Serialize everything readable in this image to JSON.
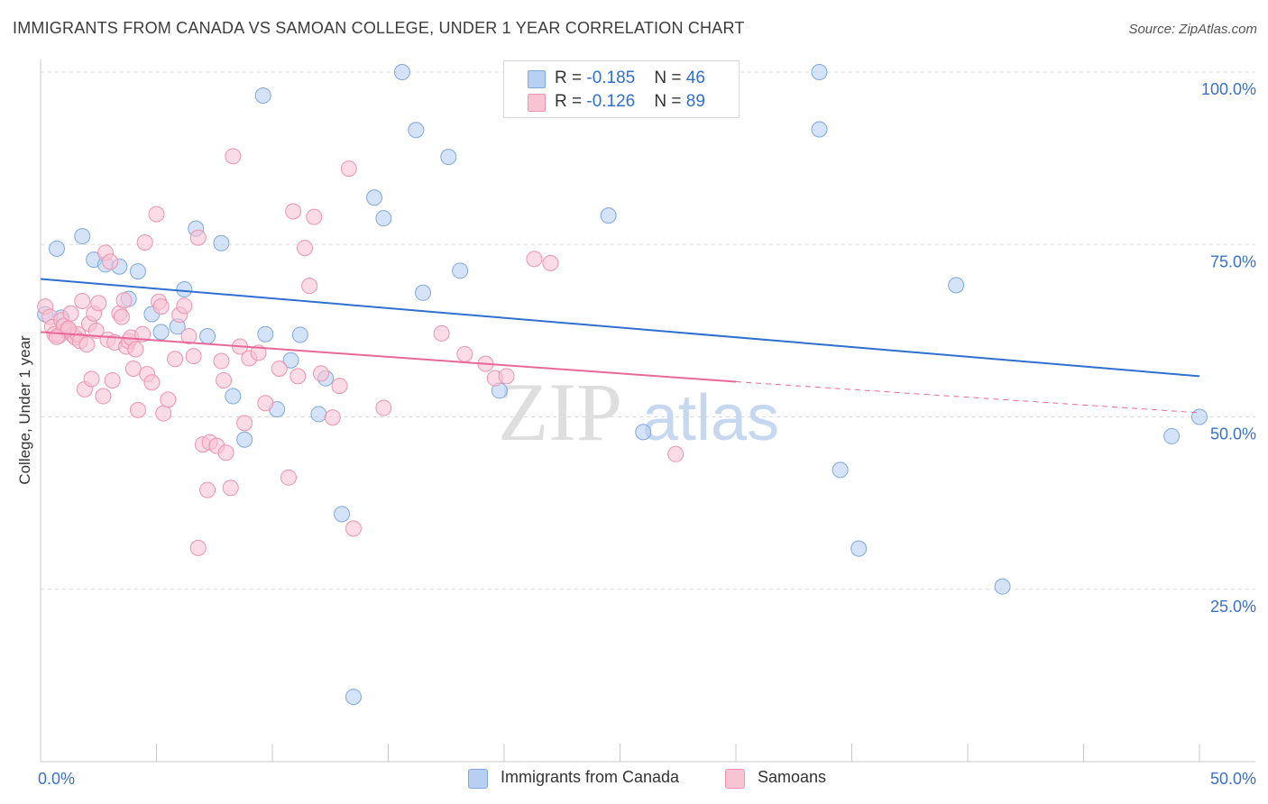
{
  "header": {
    "title": "IMMIGRANTS FROM CANADA VS SAMOAN COLLEGE, UNDER 1 YEAR CORRELATION CHART",
    "source": "Source: ZipAtlas.com"
  },
  "watermark": {
    "zip": "ZIP",
    "atlas": "atlas"
  },
  "legend_top": {
    "rows": [
      {
        "r_label": "R = ",
        "r_value": "-0.185",
        "n_label": "N = ",
        "n_value": "46"
      },
      {
        "r_label": "R = ",
        "r_value": "-0.126",
        "n_label": "N = ",
        "n_value": "89"
      }
    ]
  },
  "legend_bottom": {
    "items": [
      {
        "label": "Immigrants from Canada"
      },
      {
        "label": "Samoans"
      }
    ]
  },
  "colors": {
    "blue_fill": "#b7d0f2",
    "blue_stroke": "#7fa8e0",
    "blue_line": "#2f6fd0",
    "pink_fill": "#f8c3d3",
    "pink_stroke": "#ee93b0",
    "pink_line": "#e8689a",
    "axis_text": "#3a72c9",
    "grid": "#dcdcdc"
  },
  "chart_data": {
    "type": "scatter",
    "title": "IMMIGRANTS FROM CANADA VS SAMOAN COLLEGE, UNDER 1 YEAR CORRELATION CHART",
    "xlabel": "",
    "ylabel": "College, Under 1 year",
    "xlim": [
      0,
      50
    ],
    "ylim": [
      0,
      100
    ],
    "x_tick_labels": [
      "0.0%",
      "50.0%"
    ],
    "y_tick_labels": [
      "25.0%",
      "50.0%",
      "75.0%",
      "100.0%"
    ],
    "y_ticks": [
      25,
      50,
      75,
      100
    ],
    "grid": true,
    "series": [
      {
        "name": "Immigrants from Canada",
        "color": "#b7d0f2",
        "trend": {
          "x": [
            0,
            50
          ],
          "y": [
            70.0,
            55.9
          ]
        },
        "points": [
          [
            0.7,
            74.4
          ],
          [
            1.8,
            76.2
          ],
          [
            2.3,
            72.8
          ],
          [
            2.8,
            72.1
          ],
          [
            3.4,
            71.8
          ],
          [
            3.8,
            67.1
          ],
          [
            4.2,
            71.1
          ],
          [
            4.8,
            64.9
          ],
          [
            5.2,
            62.3
          ],
          [
            5.9,
            63.1
          ],
          [
            6.2,
            68.5
          ],
          [
            6.7,
            77.3
          ],
          [
            7.2,
            61.7
          ],
          [
            7.8,
            75.2
          ],
          [
            8.3,
            53.0
          ],
          [
            8.8,
            46.7
          ],
          [
            9.6,
            96.6
          ],
          [
            9.7,
            62.0
          ],
          [
            10.2,
            51.1
          ],
          [
            10.8,
            58.2
          ],
          [
            11.2,
            61.9
          ],
          [
            12.0,
            50.4
          ],
          [
            12.3,
            55.6
          ],
          [
            13.0,
            35.9
          ],
          [
            13.5,
            9.4
          ],
          [
            14.4,
            81.8
          ],
          [
            14.8,
            78.8
          ],
          [
            15.6,
            100.0
          ],
          [
            16.2,
            91.6
          ],
          [
            16.5,
            68.0
          ],
          [
            17.6,
            87.7
          ],
          [
            18.1,
            71.2
          ],
          [
            19.8,
            53.8
          ],
          [
            24.5,
            79.2
          ],
          [
            26.0,
            47.8
          ],
          [
            33.6,
            91.7
          ],
          [
            33.6,
            100.0
          ],
          [
            34.5,
            42.3
          ],
          [
            35.3,
            30.9
          ],
          [
            39.5,
            69.1
          ],
          [
            41.5,
            25.4
          ],
          [
            48.8,
            47.2
          ],
          [
            50.0,
            50.0
          ],
          [
            0.2,
            64.9
          ],
          [
            0.9,
            64.4
          ],
          [
            1.1,
            62.5
          ]
        ]
      },
      {
        "name": "Samoans",
        "color": "#f8c3d3",
        "trend": {
          "x": [
            0,
            30
          ],
          "y": [
            62.3,
            55.1
          ]
        },
        "trend_dashed": {
          "x": [
            30,
            50
          ],
          "y": [
            55.1,
            50.6
          ]
        },
        "points": [
          [
            0.2,
            66.0
          ],
          [
            0.4,
            64.5
          ],
          [
            0.5,
            63.0
          ],
          [
            0.6,
            62.0
          ],
          [
            0.8,
            61.8
          ],
          [
            0.9,
            64.0
          ],
          [
            1.0,
            63.2
          ],
          [
            1.2,
            62.5
          ],
          [
            1.3,
            65.0
          ],
          [
            1.4,
            61.9
          ],
          [
            1.5,
            61.5
          ],
          [
            1.6,
            62.0
          ],
          [
            1.7,
            61.0
          ],
          [
            1.8,
            66.8
          ],
          [
            1.9,
            54.0
          ],
          [
            2.0,
            60.5
          ],
          [
            2.1,
            63.5
          ],
          [
            2.2,
            55.5
          ],
          [
            2.3,
            65.0
          ],
          [
            2.4,
            62.5
          ],
          [
            2.5,
            66.5
          ],
          [
            2.7,
            53.0
          ],
          [
            2.8,
            73.8
          ],
          [
            2.9,
            61.2
          ],
          [
            3.0,
            72.5
          ],
          [
            3.1,
            55.3
          ],
          [
            3.2,
            60.8
          ],
          [
            3.4,
            65.0
          ],
          [
            3.5,
            64.5
          ],
          [
            3.6,
            66.9
          ],
          [
            3.7,
            60.2
          ],
          [
            3.8,
            61.0
          ],
          [
            3.9,
            61.5
          ],
          [
            4.0,
            57.0
          ],
          [
            4.1,
            59.8
          ],
          [
            4.2,
            51.0
          ],
          [
            4.4,
            62.0
          ],
          [
            4.5,
            75.3
          ],
          [
            4.6,
            56.2
          ],
          [
            4.8,
            55.0
          ],
          [
            5.0,
            79.4
          ],
          [
            5.1,
            66.7
          ],
          [
            5.2,
            66.0
          ],
          [
            5.3,
            50.5
          ],
          [
            5.5,
            52.5
          ],
          [
            5.8,
            58.4
          ],
          [
            6.0,
            64.8
          ],
          [
            6.2,
            66.1
          ],
          [
            6.4,
            61.7
          ],
          [
            6.6,
            58.8
          ],
          [
            6.8,
            76.0
          ],
          [
            7.0,
            46.0
          ],
          [
            7.2,
            39.4
          ],
          [
            7.3,
            46.3
          ],
          [
            7.6,
            45.8
          ],
          [
            7.8,
            58.1
          ],
          [
            7.9,
            55.3
          ],
          [
            8.0,
            44.8
          ],
          [
            8.2,
            39.7
          ],
          [
            8.3,
            87.8
          ],
          [
            8.6,
            60.2
          ],
          [
            8.8,
            49.1
          ],
          [
            9.0,
            58.5
          ],
          [
            9.4,
            59.3
          ],
          [
            9.7,
            52.0
          ],
          [
            10.3,
            57.0
          ],
          [
            10.7,
            41.2
          ],
          [
            10.9,
            79.8
          ],
          [
            11.1,
            55.9
          ],
          [
            11.4,
            74.5
          ],
          [
            11.6,
            69.0
          ],
          [
            11.8,
            79.0
          ],
          [
            12.1,
            56.3
          ],
          [
            12.6,
            49.9
          ],
          [
            12.9,
            54.5
          ],
          [
            13.3,
            86.0
          ],
          [
            13.5,
            33.8
          ],
          [
            14.8,
            51.3
          ],
          [
            17.3,
            62.1
          ],
          [
            18.3,
            59.1
          ],
          [
            19.2,
            57.7
          ],
          [
            19.6,
            55.6
          ],
          [
            20.1,
            55.9
          ],
          [
            21.3,
            72.9
          ],
          [
            22.0,
            72.3
          ],
          [
            27.4,
            44.6
          ],
          [
            6.8,
            31.0
          ],
          [
            1.2,
            62.8
          ],
          [
            0.7,
            61.6
          ]
        ]
      }
    ]
  }
}
